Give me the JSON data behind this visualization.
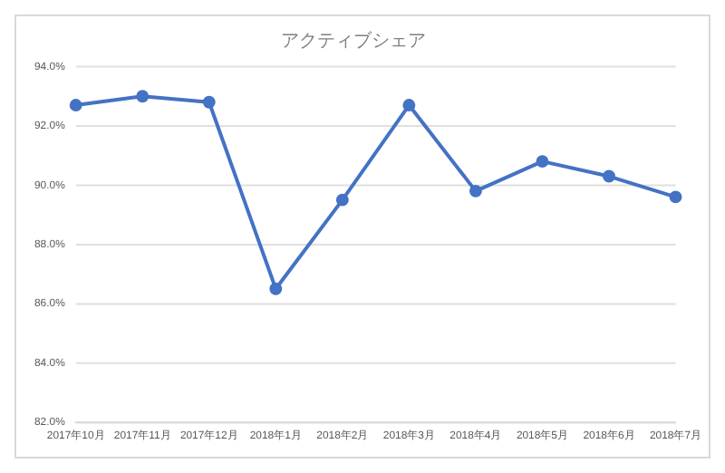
{
  "chart_data": {
    "type": "line",
    "title": "アクティブシェア",
    "categories": [
      "2017年10月",
      "2017年11月",
      "2017年12月",
      "2018年1月",
      "2018年2月",
      "2018年3月",
      "2018年4月",
      "2018年5月",
      "2018年6月",
      "2018年7月"
    ],
    "series": [
      {
        "color": "#4472c4",
        "values": [
          92.7,
          93.0,
          92.8,
          86.5,
          89.5,
          92.7,
          89.8,
          90.8,
          90.3,
          89.6
        ]
      }
    ],
    "ylim": [
      82,
      94
    ],
    "yticks": [
      {
        "value": 82,
        "label": "82.0%"
      },
      {
        "value": 84,
        "label": "84.0%"
      },
      {
        "value": 86,
        "label": "86.0%"
      },
      {
        "value": 88,
        "label": "88.0%"
      },
      {
        "value": 90,
        "label": "90.0%"
      },
      {
        "value": 92,
        "label": "92.0%"
      },
      {
        "value": 94,
        "label": "94.0%"
      }
    ],
    "grid": "y",
    "legend": false,
    "marker": "circle",
    "line_style": "solid"
  }
}
